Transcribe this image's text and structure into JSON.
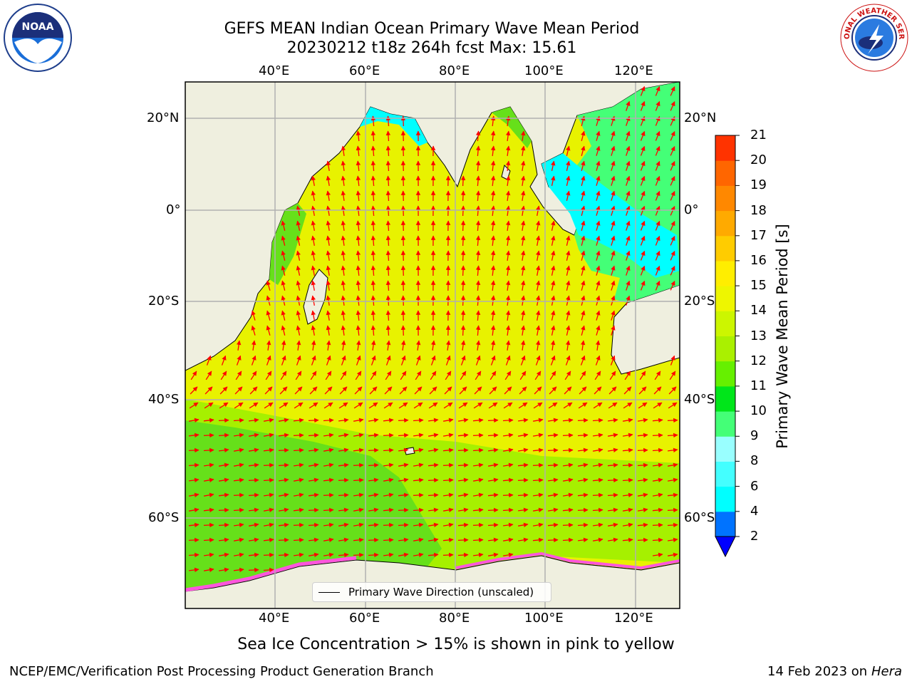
{
  "header": {
    "title_line1": "GEFS MEAN Indian Ocean Primary Wave Mean Period",
    "title_line2": "20230212 t18z 264h fcst   Max: 15.61"
  },
  "logos": {
    "left": "NOAA",
    "right": "NATIONAL WEATHER SERVICE"
  },
  "map": {
    "lon_ticks_top": [
      "40°E",
      "60°E",
      "80°E",
      "100°E",
      "120°E"
    ],
    "lon_ticks_bottom": [
      "40°E",
      "60°E",
      "80°E",
      "100°E",
      "120°E"
    ],
    "lat_ticks_left": [
      "20°N",
      "0°",
      "20°S",
      "40°S",
      "60°S"
    ],
    "lat_ticks_right": [
      "20°N",
      "0°",
      "20°S",
      "40°S",
      "60°S"
    ],
    "legend_label": "Primary Wave Direction (unscaled)",
    "colors": {
      "land": "#efefdf",
      "arrow": "#ff0000",
      "ocean_main": "#e8f200",
      "ocean_south": "#a6f000",
      "ocean_green": "#66e01a",
      "ocean_coastal": "#44ff77",
      "ocean_shallow": "#00ffff",
      "grid": "#b0b0b0"
    }
  },
  "colorbar": {
    "label": "Primary Wave Mean Period [s]",
    "ticks": [
      "2",
      "4",
      "6",
      "8",
      "9",
      "10",
      "11",
      "12",
      "13",
      "14",
      "15",
      "16",
      "17",
      "18",
      "19",
      "20",
      "21"
    ],
    "colors": [
      "#0073ff",
      "#00ffff",
      "#44ffff",
      "#99ffff",
      "#44ff77",
      "#00e61a",
      "#66f000",
      "#aaf000",
      "#ccf600",
      "#eef600",
      "#ffee00",
      "#ffcc00",
      "#ffaa00",
      "#ff8800",
      "#ff6600",
      "#ff3300",
      "#ff0000"
    ]
  },
  "footer": {
    "note": "Sea Ice Concentration > 15% is shown in pink to yellow",
    "org": "NCEP/EMC/Verification Post Processing Product Generation Branch",
    "date": "14 Feb 2023 on",
    "machine": "Hera"
  }
}
